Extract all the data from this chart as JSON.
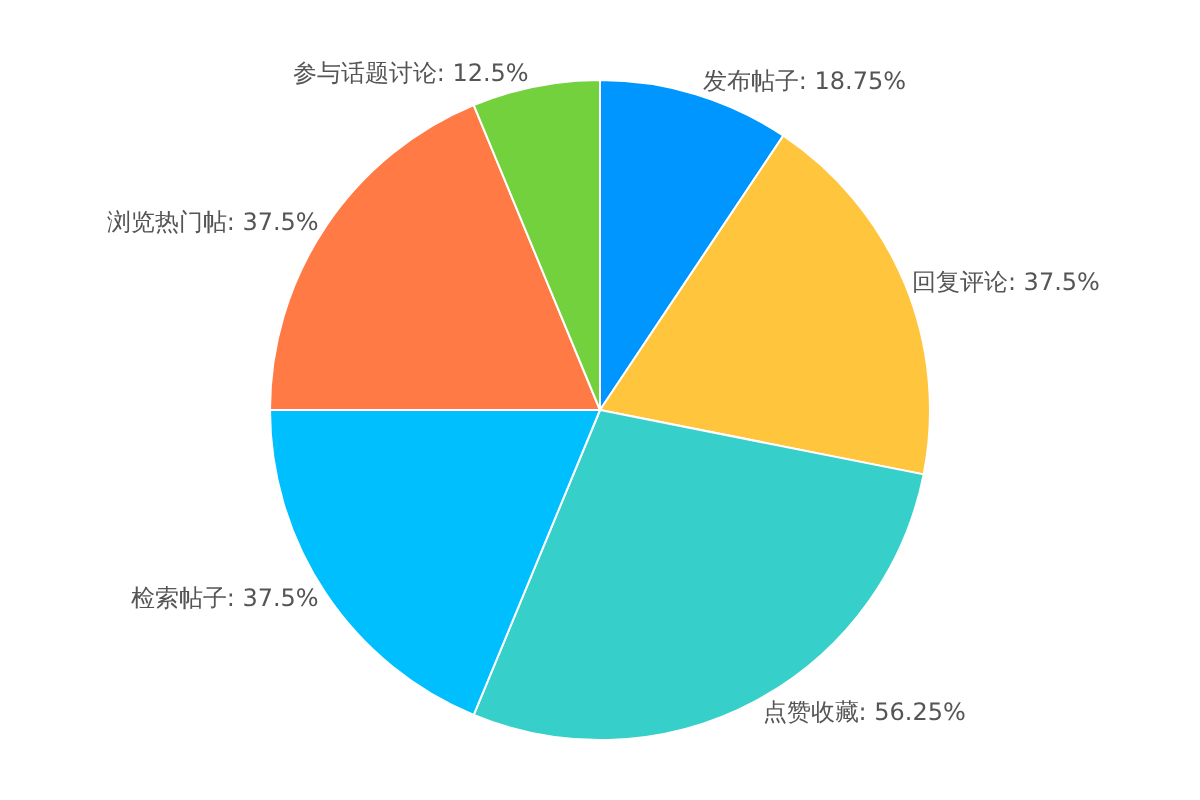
{
  "chart_data": {
    "type": "pie",
    "categories": [
      "发布帖子",
      "回复评论",
      "点赞收藏",
      "检索帖子",
      "浏览热门帖",
      "参与话题讨论"
    ],
    "values": [
      18.75,
      37.5,
      56.25,
      37.5,
      37.5,
      12.5
    ],
    "value_labels": [
      "18.75%",
      "37.5%",
      "56.25%",
      "37.5%",
      "37.5%",
      "12.5%"
    ],
    "colors": [
      "#0096ff",
      "#ffc53d",
      "#36cfc9",
      "#00bfff",
      "#ff7a45",
      "#73d13d"
    ],
    "legend": false
  }
}
